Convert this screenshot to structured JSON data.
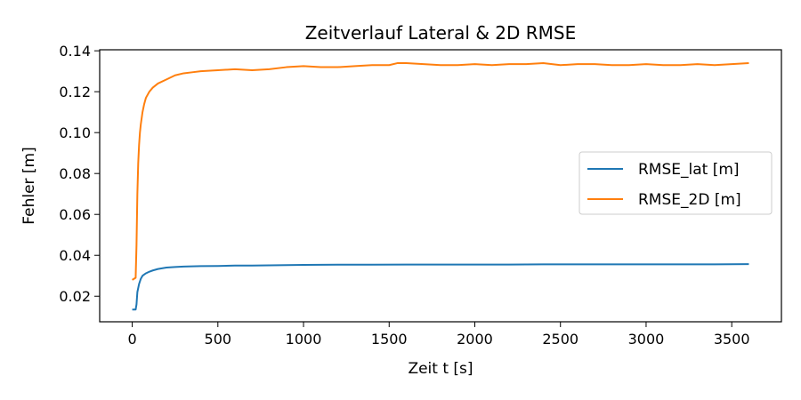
{
  "chart_data": {
    "type": "line",
    "title": "Zeitverlauf Lateral & 2D RMSE",
    "xlabel": "Zeit t [s]",
    "ylabel": "Fehler [m]",
    "xlim": [
      -190,
      3790
    ],
    "ylim": [
      0.0075,
      0.1405
    ],
    "x_ticks": [
      0,
      500,
      1000,
      1500,
      2000,
      2500,
      3000,
      3500
    ],
    "y_ticks": [
      0.02,
      0.04,
      0.06,
      0.08,
      0.1,
      0.12,
      0.14
    ],
    "x_tick_labels": [
      "0",
      "500",
      "1000",
      "1500",
      "2000",
      "2500",
      "3000",
      "3500"
    ],
    "y_tick_labels": [
      "0.02",
      "0.04",
      "0.06",
      "0.08",
      "0.10",
      "0.12",
      "0.14"
    ],
    "grid": false,
    "legend_position": "center-right",
    "series": [
      {
        "name": "RMSE_lat [m]",
        "color": "#1f77b4",
        "x": [
          0,
          20,
          25,
          30,
          40,
          50,
          60,
          80,
          100,
          120,
          150,
          200,
          250,
          300,
          400,
          500,
          600,
          700,
          800,
          900,
          1000,
          1200,
          1400,
          1600,
          1800,
          2000,
          2200,
          2400,
          2600,
          2800,
          3000,
          3200,
          3400,
          3600
        ],
        "y": [
          0.0135,
          0.0135,
          0.016,
          0.022,
          0.026,
          0.0285,
          0.03,
          0.0312,
          0.032,
          0.0326,
          0.0333,
          0.034,
          0.0343,
          0.0345,
          0.0347,
          0.0348,
          0.035,
          0.035,
          0.0351,
          0.0352,
          0.0353,
          0.0354,
          0.0354,
          0.0355,
          0.0355,
          0.0355,
          0.0355,
          0.0356,
          0.0356,
          0.0356,
          0.0356,
          0.0356,
          0.0356,
          0.0357
        ]
      },
      {
        "name": "RMSE_2D [m]",
        "color": "#ff7f0e",
        "x": [
          0,
          20,
          25,
          30,
          35,
          40,
          45,
          50,
          60,
          70,
          80,
          100,
          120,
          150,
          200,
          250,
          300,
          350,
          400,
          500,
          600,
          700,
          800,
          900,
          1000,
          1100,
          1200,
          1300,
          1400,
          1500,
          1550,
          1600,
          1700,
          1800,
          1900,
          2000,
          2100,
          2200,
          2300,
          2400,
          2500,
          2600,
          2700,
          2800,
          2900,
          3000,
          3100,
          3200,
          3300,
          3400,
          3500,
          3600
        ],
        "y": [
          0.028,
          0.029,
          0.045,
          0.07,
          0.085,
          0.094,
          0.1,
          0.104,
          0.11,
          0.114,
          0.117,
          0.12,
          0.122,
          0.124,
          0.126,
          0.128,
          0.129,
          0.1295,
          0.13,
          0.1305,
          0.131,
          0.1305,
          0.131,
          0.132,
          0.1325,
          0.132,
          0.132,
          0.1325,
          0.133,
          0.133,
          0.134,
          0.134,
          0.1335,
          0.133,
          0.133,
          0.1335,
          0.133,
          0.1335,
          0.1335,
          0.134,
          0.133,
          0.1335,
          0.1335,
          0.133,
          0.133,
          0.1335,
          0.133,
          0.133,
          0.1335,
          0.133,
          0.1335,
          0.134
        ]
      }
    ]
  }
}
